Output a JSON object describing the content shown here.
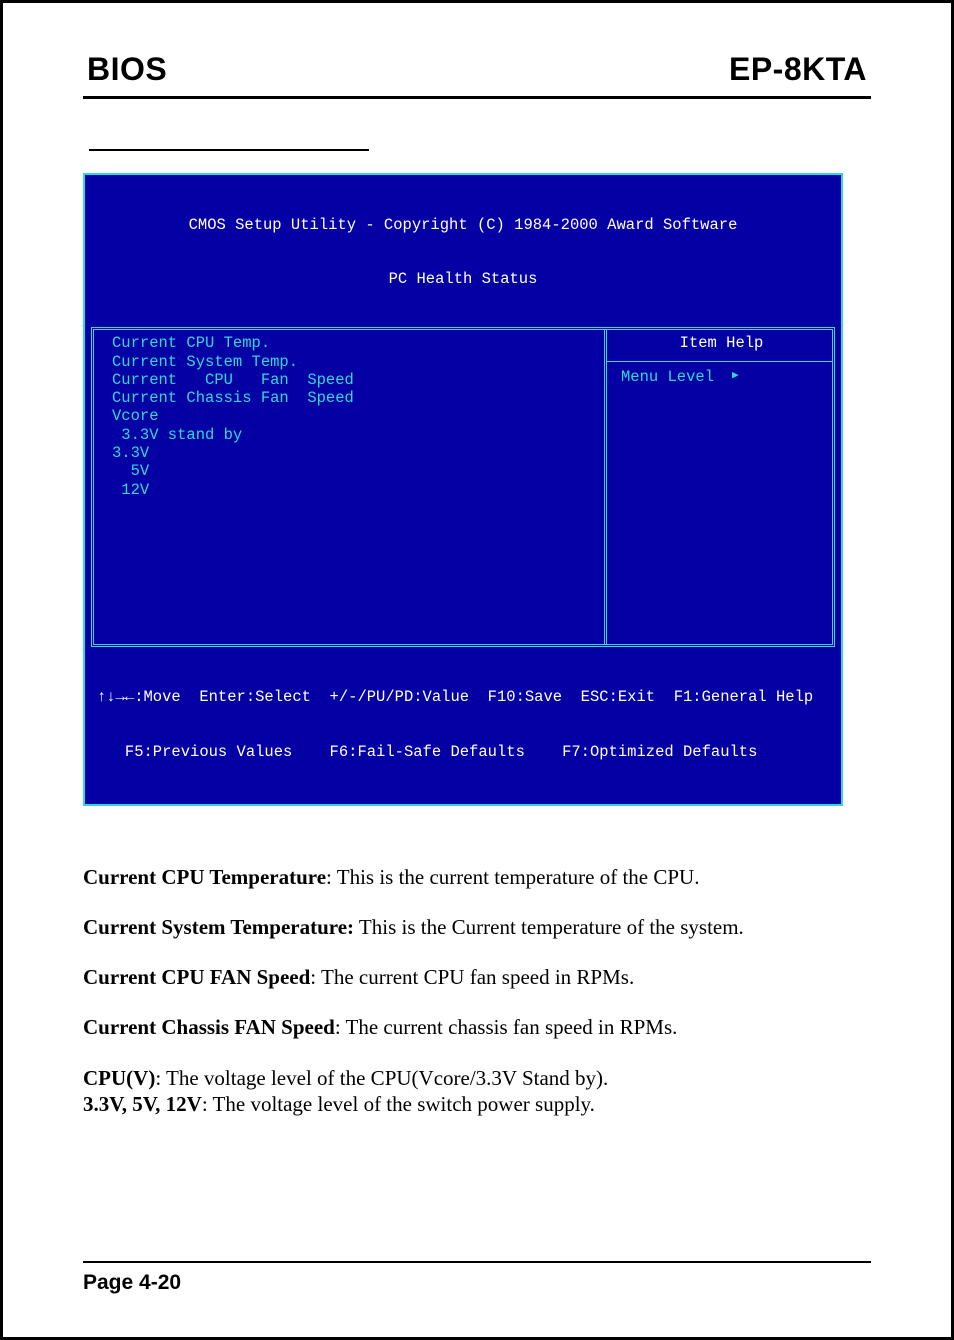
{
  "colors": {
    "bios_blue": "#0400a4",
    "bios_cyan": "#30d8d8",
    "bios_white": "#ffffff"
  },
  "header": {
    "left": "BIOS",
    "right": "EP-8KTA"
  },
  "bios": {
    "title_line1": "CMOS Setup Utility - Copyright (C) 1984-2000 Award Software",
    "title_line2": "PC Health Status",
    "left_items": [
      "Current CPU Temp.",
      "Current System Temp.",
      "Current   CPU   Fan  Speed",
      "Current Chassis Fan  Speed",
      "Vcore",
      " 3.3V stand by",
      "3.3V",
      "  5V",
      " 12V"
    ],
    "help_title": "Item Help",
    "menu_level_label": "Menu Level",
    "footer_line1": "↑↓→←:Move  Enter:Select  +/-/PU/PD:Value  F10:Save  ESC:Exit  F1:General Help",
    "footer_line2": "   F5:Previous Values    F6:Fail-Safe Defaults    F7:Optimized Defaults"
  },
  "definitions": [
    {
      "term": "Current CPU Temperature",
      "sep": ":   ",
      "desc": "This is the current temperature of the CPU."
    },
    {
      "term": "Current System Temperature:",
      "sep": "  ",
      "desc": "This is the Current temperature of the system."
    },
    {
      "term": "Current CPU FAN Speed",
      "sep": ":  ",
      "desc": "The current CPU fan speed in RPMs."
    },
    {
      "term": "Current Chassis FAN Speed",
      "sep": ":  ",
      "desc": "The current chassis fan speed in RPMs."
    },
    {
      "term": "CPU(V)",
      "sep": ":   ",
      "desc": "The voltage level of the CPU(Vcore/3.3V Stand by)."
    },
    {
      "term": "3.3V, 5V, 12V",
      "sep": ":  ",
      "desc": "The voltage level of the switch power supply."
    }
  ],
  "footer": {
    "page_label": "Page 4-20"
  }
}
